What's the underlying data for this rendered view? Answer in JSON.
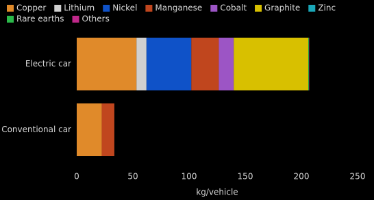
{
  "chart_data": {
    "type": "stacked-bar-horizontal",
    "categories": [
      "Electric car",
      "Conventional car"
    ],
    "series": [
      {
        "name": "Copper",
        "color": "#e08a2a",
        "values": [
          53.2,
          22.3
        ]
      },
      {
        "name": "Lithium",
        "color": "#d0d0d0",
        "values": [
          8.9,
          0
        ]
      },
      {
        "name": "Nickel",
        "color": "#0f52c8",
        "values": [
          39.9,
          0
        ]
      },
      {
        "name": "Manganese",
        "color": "#c0461e",
        "values": [
          24.5,
          11.2
        ]
      },
      {
        "name": "Cobalt",
        "color": "#9c55c5",
        "values": [
          13.3,
          0
        ]
      },
      {
        "name": "Graphite",
        "color": "#d8c000",
        "values": [
          66.3,
          0
        ]
      },
      {
        "name": "Zinc",
        "color": "#1aa7b8",
        "values": [
          0.1,
          0
        ]
      },
      {
        "name": "Rare earths",
        "color": "#2bb94a",
        "values": [
          0.5,
          0
        ]
      },
      {
        "name": "Others",
        "color": "#c0288a",
        "values": [
          0.3,
          0
        ]
      }
    ],
    "x_label": "kg/vehicle",
    "xlim": [
      0,
      250
    ],
    "xticks": [
      0,
      50,
      100,
      150,
      200,
      250
    ],
    "legend": "top-left"
  }
}
